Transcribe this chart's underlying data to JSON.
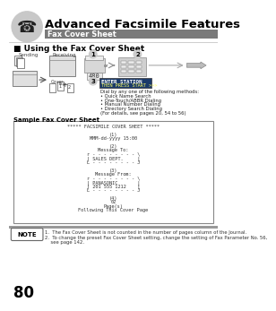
{
  "page_title": "Advanced Facsimile Features",
  "subtitle": "Fax Cover Sheet",
  "section_title": "■ Using the Fax Cover Sheet",
  "sample_label": "Sample Fax Cover Sheet",
  "cover_sheet_lines": [
    "***** FACSIMILE COVER SHEET *****",
    "",
    "(1)",
    "MMM-dd-yyyy 15:00",
    "",
    "(2)",
    "Message To:",
    "r - - - - - - - - \\",
    "| SALES DEPT.     |",
    "L - - - - - - - - J",
    "",
    "(3)",
    "Message From:",
    "r - - - - - - - - \\",
    "| PANASONIC       |",
    "| 201 555 1212    |",
    "L - - - - - - - - J",
    "",
    "(4)",
    "02",
    "Page(s)",
    "Following This Cover Page"
  ],
  "note_text1": "1.  The Fax Cover Sheet is not counted in the number of pages column of the Journal.",
  "note_text2": "2.  To change the preset Fax Cover Sheet setting, change the setting of Fax Parameter No. 56,",
  "note_text3": "    see page 142.",
  "page_number": "80",
  "bg_color": "#ffffff",
  "title_color": "#000000",
  "icon_bg": "#c8c8c8",
  "subheader_color": "#7a7a7a",
  "note_border": "#888888"
}
